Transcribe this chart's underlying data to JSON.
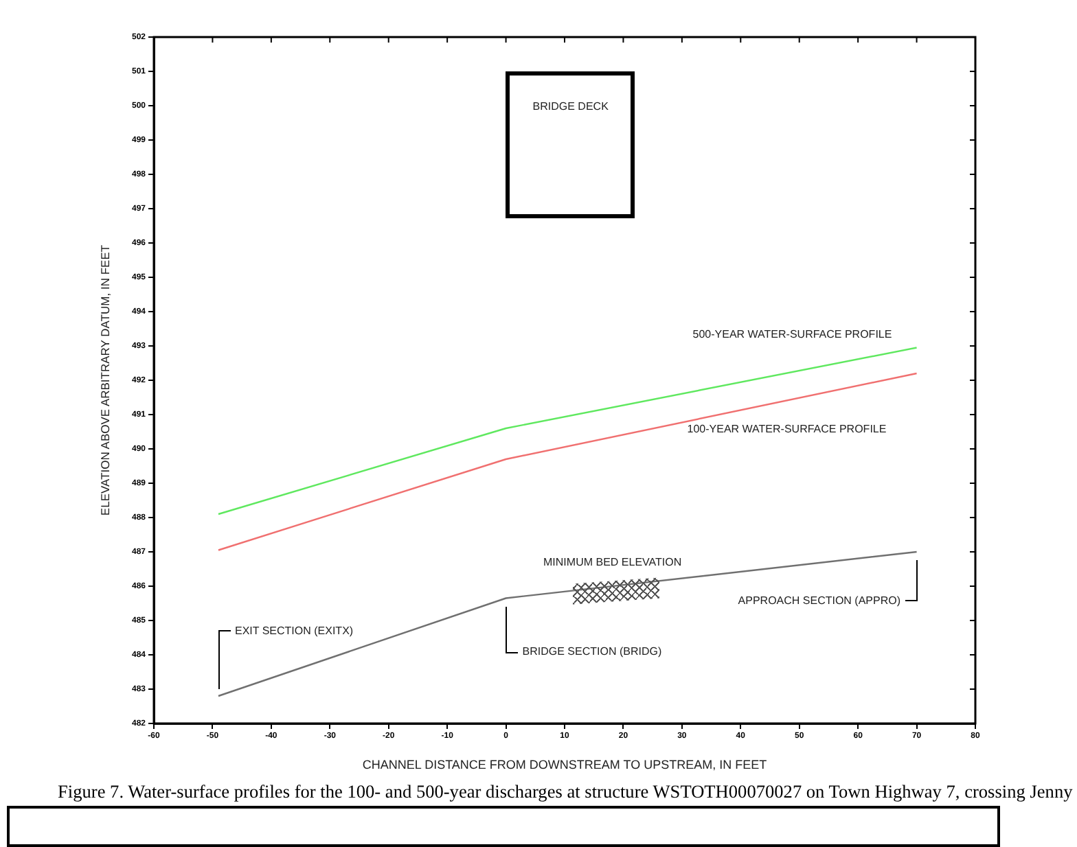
{
  "chart_data": {
    "type": "line",
    "xlabel": "CHANNEL DISTANCE FROM DOWNSTREAM TO UPSTREAM, IN FEET",
    "ylabel": "ELEVATION ABOVE ARBITRARY DATUM, IN FEET",
    "xlim": [
      -60,
      80
    ],
    "xticks": [
      -60,
      -50,
      -40,
      -30,
      -20,
      -10,
      0,
      10,
      20,
      30,
      40,
      50,
      60,
      70,
      80
    ],
    "ylim": [
      482,
      502
    ],
    "yticks": [
      482,
      483,
      484,
      485,
      486,
      487,
      488,
      489,
      490,
      491,
      492,
      493,
      494,
      495,
      496,
      497,
      498,
      499,
      500,
      501,
      502
    ],
    "grid": false,
    "legend": false,
    "marker": "none",
    "line_style": "solid",
    "series": [
      {
        "name": "500-YEAR WATER-SURFACE PROFILE",
        "color": "#5fe85f",
        "x": [
          -49,
          0,
          70
        ],
        "values": [
          488.1,
          490.6,
          492.95
        ]
      },
      {
        "name": "100-YEAR WATER-SURFACE PROFILE",
        "color": "#f07070",
        "x": [
          -49,
          0,
          70
        ],
        "values": [
          487.05,
          489.7,
          492.2
        ]
      },
      {
        "name": "MINIMUM BED ELEVATION",
        "color": "#707070",
        "x": [
          -49,
          0,
          70
        ],
        "values": [
          482.8,
          485.65,
          487.0
        ]
      }
    ],
    "annotations": [
      "BRIDGE DECK",
      "EXIT SECTION (EXITX)",
      "BRIDGE SECTION (BRIDG)",
      "APPROACH SECTION (APPRO)",
      "Figure 7. Water-surface profiles for the 100- and 500-year discharges at structure WSTOTH00070027 on Town Highway 7, crossing Jenny"
    ]
  }
}
